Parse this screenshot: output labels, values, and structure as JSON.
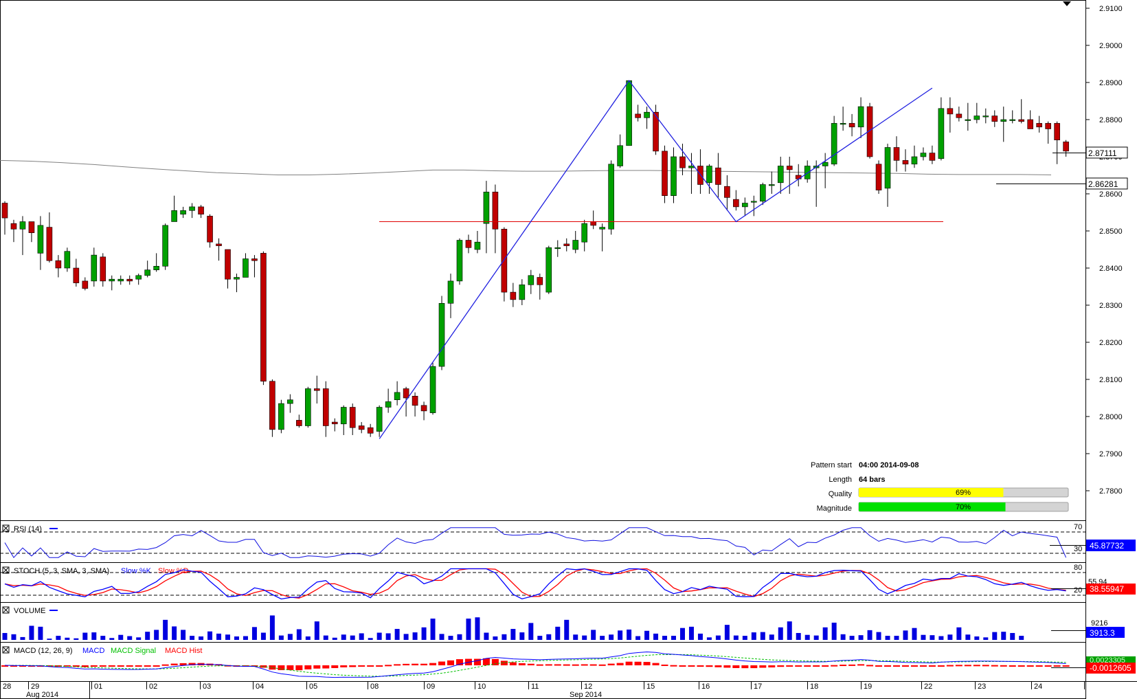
{
  "chart_data": [
    {
      "type": "candlestick",
      "panel": "price",
      "y_ticks": [
        2.91,
        2.9,
        2.89,
        2.88,
        2.87,
        2.86,
        2.85,
        2.84,
        2.83,
        2.82,
        2.81,
        2.8,
        2.79,
        2.78
      ],
      "ylim": [
        2.7715,
        2.912
      ],
      "current_price": "2.87111",
      "ma_value": "2.86281",
      "ma_curve": [
        2.869,
        2.8688,
        2.8684,
        2.8679,
        2.8673,
        2.8667,
        2.8662,
        2.8657,
        2.8654,
        2.8651,
        2.8651,
        2.8653,
        2.8656,
        2.866,
        2.8664,
        2.8664,
        2.8662,
        2.8661,
        2.8661,
        2.8662,
        2.8663,
        2.8663,
        2.8662,
        2.8661,
        2.866,
        2.8659,
        2.8658,
        2.8657,
        2.8656,
        2.8655,
        2.8653,
        2.8652,
        2.8652,
        2.8652,
        2.8651
      ],
      "candles": [
        [
          2.8575,
          2.8535,
          2.858,
          2.849
        ],
        [
          2.852,
          2.8505,
          2.853,
          2.847
        ],
        [
          2.8505,
          2.8525,
          2.854,
          2.8435
        ],
        [
          2.8525,
          2.8495,
          2.852,
          2.847
        ],
        [
          2.844,
          2.8515,
          2.854,
          2.8395
        ],
        [
          2.851,
          2.842,
          2.855,
          2.8415
        ],
        [
          2.842,
          2.84,
          2.8435,
          2.8375
        ],
        [
          2.84,
          2.8445,
          2.8455,
          2.839
        ],
        [
          2.84,
          2.836,
          2.8425,
          2.835
        ],
        [
          2.8365,
          2.8345,
          2.8375,
          2.834
        ],
        [
          2.8365,
          2.8435,
          2.8455,
          2.835
        ],
        [
          2.843,
          2.8365,
          2.844,
          2.835
        ],
        [
          2.8365,
          2.837,
          2.838,
          2.834
        ],
        [
          2.8365,
          2.837,
          2.838,
          2.8355
        ],
        [
          2.837,
          2.8365,
          2.838,
          2.8355
        ],
        [
          2.837,
          2.838,
          2.8385,
          2.8355
        ],
        [
          2.838,
          2.8395,
          2.842,
          2.8375
        ],
        [
          2.8395,
          2.8405,
          2.844,
          2.839
        ],
        [
          2.8405,
          2.8515,
          2.852,
          2.8395
        ],
        [
          2.8525,
          2.8555,
          2.8595,
          2.8525
        ],
        [
          2.8545,
          2.8555,
          2.8565,
          2.8535
        ],
        [
          2.8555,
          2.8565,
          2.8575,
          2.8535
        ],
        [
          2.8565,
          2.8545,
          2.857,
          2.8535
        ],
        [
          2.854,
          2.847,
          2.8545,
          2.8455
        ],
        [
          2.8465,
          2.846,
          2.848,
          2.842
        ],
        [
          2.845,
          2.837,
          2.845,
          2.8345
        ],
        [
          2.837,
          2.8375,
          2.8385,
          2.8335
        ],
        [
          2.8375,
          2.8425,
          2.844,
          2.8375
        ],
        [
          2.8425,
          2.842,
          2.8435,
          2.8375
        ],
        [
          2.844,
          2.8095,
          2.8445,
          2.8085
        ],
        [
          2.8095,
          2.7965,
          2.81,
          2.7945
        ],
        [
          2.7965,
          2.8035,
          2.8045,
          2.7955
        ],
        [
          2.8035,
          2.8045,
          2.806,
          2.801
        ],
        [
          2.799,
          2.7975,
          2.8005,
          2.797
        ],
        [
          2.7975,
          2.8075,
          2.808,
          2.797
        ],
        [
          2.8075,
          2.807,
          2.811,
          2.8035
        ],
        [
          2.8075,
          2.7975,
          2.8095,
          2.7945
        ],
        [
          2.7985,
          2.798,
          2.7995,
          2.796
        ],
        [
          2.798,
          2.8025,
          2.803,
          2.795
        ],
        [
          2.8025,
          2.797,
          2.8035,
          2.795
        ],
        [
          2.7975,
          2.7965,
          2.7985,
          2.7955
        ],
        [
          2.797,
          2.7955,
          2.798,
          2.7945
        ],
        [
          2.796,
          2.8025,
          2.803,
          2.7945
        ],
        [
          2.8025,
          2.804,
          2.8075,
          2.801
        ],
        [
          2.8045,
          2.8065,
          2.8095,
          2.803
        ],
        [
          2.8075,
          2.805,
          2.808,
          2.8
        ],
        [
          2.8055,
          2.803,
          2.8065,
          2.8
        ],
        [
          2.803,
          2.8015,
          2.804,
          2.799
        ],
        [
          2.801,
          2.8135,
          2.8145,
          2.8005
        ],
        [
          2.8135,
          2.8305,
          2.8325,
          2.8125
        ],
        [
          2.8305,
          2.8365,
          2.8385,
          2.8265
        ],
        [
          2.8365,
          2.8475,
          2.848,
          2.8355
        ],
        [
          2.8475,
          2.8455,
          2.849,
          2.844
        ],
        [
          2.845,
          2.847,
          2.85,
          2.844
        ],
        [
          2.852,
          2.8605,
          2.8635,
          2.844
        ],
        [
          2.8605,
          2.8505,
          2.8625,
          2.844
        ],
        [
          2.8505,
          2.8335,
          2.851,
          2.831
        ],
        [
          2.8335,
          2.8315,
          2.836,
          2.8295
        ],
        [
          2.8315,
          2.8355,
          2.837,
          2.83
        ],
        [
          2.8355,
          2.838,
          2.8395,
          2.833
        ],
        [
          2.8375,
          2.8355,
          2.8385,
          2.8315
        ],
        [
          2.8335,
          2.8455,
          2.846,
          2.833
        ],
        [
          2.8455,
          2.8455,
          2.8475,
          2.843
        ],
        [
          2.8465,
          2.846,
          2.848,
          2.8445
        ],
        [
          2.845,
          2.8475,
          2.85,
          2.844
        ],
        [
          2.847,
          2.852,
          2.853,
          2.8445
        ],
        [
          2.8525,
          2.8515,
          2.8555,
          2.8505
        ],
        [
          2.8505,
          2.851,
          2.852,
          2.8445
        ],
        [
          2.8505,
          2.868,
          2.869,
          2.849
        ],
        [
          2.8675,
          2.873,
          2.876,
          2.867
        ],
        [
          2.873,
          2.8905,
          2.8905,
          2.873
        ],
        [
          2.8815,
          2.8805,
          2.884,
          2.8795
        ],
        [
          2.8805,
          2.882,
          2.8835,
          2.8775
        ],
        [
          2.882,
          2.8715,
          2.884,
          2.8705
        ],
        [
          2.8715,
          2.8595,
          2.873,
          2.8575
        ],
        [
          2.8595,
          2.87,
          2.8725,
          2.8575
        ],
        [
          2.87,
          2.867,
          2.8735,
          2.865
        ],
        [
          2.867,
          2.8675,
          2.871,
          2.86
        ],
        [
          2.8675,
          2.8625,
          2.872,
          2.86
        ],
        [
          2.863,
          2.8675,
          2.868,
          2.86
        ],
        [
          2.867,
          2.8625,
          2.871,
          2.859
        ],
        [
          2.862,
          2.859,
          2.865,
          2.8555
        ],
        [
          2.8585,
          2.8565,
          2.861,
          2.8555
        ],
        [
          2.8565,
          2.8575,
          2.859,
          2.854
        ],
        [
          2.858,
          2.858,
          2.8595,
          2.854
        ],
        [
          2.858,
          2.8625,
          2.863,
          2.857
        ],
        [
          2.8625,
          2.8625,
          2.866,
          2.86
        ],
        [
          2.863,
          2.8675,
          2.87,
          2.86
        ],
        [
          2.8675,
          2.8665,
          2.87,
          2.86
        ],
        [
          2.865,
          2.864,
          2.868,
          2.862
        ],
        [
          2.864,
          2.8675,
          2.869,
          2.863
        ],
        [
          2.867,
          2.8675,
          2.869,
          2.8565
        ],
        [
          2.8675,
          2.8685,
          2.871,
          2.8615
        ],
        [
          2.868,
          2.879,
          2.881,
          2.8675
        ],
        [
          2.879,
          2.879,
          2.8835,
          2.877
        ],
        [
          2.879,
          2.878,
          2.8815,
          2.8755
        ],
        [
          2.878,
          2.8835,
          2.886,
          2.875
        ],
        [
          2.8835,
          2.87,
          2.8845,
          2.8695
        ],
        [
          2.868,
          2.861,
          2.869,
          2.86
        ],
        [
          2.8615,
          2.8725,
          2.8735,
          2.8565
        ],
        [
          2.8725,
          2.869,
          2.8755,
          2.866
        ],
        [
          2.869,
          2.868,
          2.872,
          2.866
        ],
        [
          2.868,
          2.87,
          2.873,
          2.867
        ],
        [
          2.87,
          2.871,
          2.8725,
          2.869
        ],
        [
          2.871,
          2.869,
          2.873,
          2.868
        ],
        [
          2.8695,
          2.883,
          2.886,
          2.869
        ],
        [
          2.883,
          2.8815,
          2.886,
          2.8765
        ],
        [
          2.8815,
          2.8805,
          2.8835,
          2.8795
        ],
        [
          2.88,
          2.88,
          2.8845,
          2.877
        ],
        [
          2.88,
          2.881,
          2.8845,
          2.879
        ],
        [
          2.881,
          2.881,
          2.883,
          2.879
        ],
        [
          2.881,
          2.8795,
          2.8825,
          2.878
        ],
        [
          2.8795,
          2.88,
          2.8835,
          2.874
        ],
        [
          2.88,
          2.88,
          2.8825,
          2.879
        ],
        [
          2.88,
          2.8795,
          2.8855,
          2.879
        ],
        [
          2.88,
          2.8775,
          2.8825,
          2.878
        ],
        [
          2.879,
          2.878,
          2.881,
          2.8765
        ],
        [
          2.879,
          2.8775,
          2.8795,
          2.8735
        ],
        [
          2.879,
          2.8745,
          2.8795,
          2.868
        ],
        [
          2.874,
          2.8715,
          2.8745,
          2.87
        ]
      ],
      "pattern_zigzag": [
        [
          2.794,
          42
        ],
        [
          2.8905,
          70
        ],
        [
          2.8525,
          82
        ],
        [
          2.8885,
          104
        ]
      ],
      "support_level": 2.8525,
      "x_labels": [
        "28",
        "29",
        "01",
        "02",
        "03",
        "04",
        "05",
        "08",
        "09",
        "10",
        "11",
        "12",
        "15",
        "16",
        "17",
        "18",
        "19",
        "22",
        "23",
        "24"
      ],
      "month_labels": [
        "Aug 2014",
        "Sep 2014"
      ],
      "info": {
        "pattern_start_label": "Pattern start",
        "pattern_start_value": "04:00 2014-09-08",
        "length_label": "Length",
        "length_value": "64 bars",
        "quality_label": "Quality",
        "quality_value": "69%",
        "quality_fraction": 0.69,
        "magnitude_label": "Magnitude",
        "magnitude_value": "70%",
        "magnitude_fraction": 0.7
      }
    },
    {
      "type": "line",
      "panel": "rsi",
      "title": "RSI (14)",
      "levels": [
        "70",
        "30"
      ],
      "current_value": "45.87732"
    },
    {
      "type": "line",
      "panel": "stoch",
      "title": "STOCH (5, 3, SMA, 3, SMA)",
      "series_names": [
        "Slow %K",
        "Slow %D"
      ],
      "levels": [
        "80",
        "20"
      ],
      "side_value": "55.94",
      "current_value": "38.55947"
    },
    {
      "type": "bar",
      "panel": "volume",
      "title": "VOLUME",
      "max_value": "9216",
      "current_value": "3913.3",
      "values": [
        2200,
        1800,
        900,
        4500,
        4200,
        400,
        1300,
        700,
        500,
        2300,
        2400,
        1300,
        600,
        1600,
        1200,
        800,
        2600,
        3200,
        6400,
        4300,
        3200,
        1300,
        1100,
        2700,
        2000,
        1700,
        1100,
        1200,
        4100,
        2300,
        7800,
        1400,
        1900,
        3400,
        1100,
        5900,
        1400,
        700,
        1700,
        1400,
        2100,
        600,
        2300,
        2100,
        3500,
        1900,
        2400,
        4000,
        6800,
        1900,
        1300,
        1800,
        6800,
        7200,
        2300,
        1100,
        1800,
        3500,
        2400,
        5400,
        1300,
        1800,
        4200,
        6400,
        1700,
        1400,
        3200,
        1300,
        1700,
        3000,
        3300,
        1200,
        2900,
        2000,
        1300,
        1300,
        3800,
        4200,
        2000,
        800,
        1400,
        4800,
        1400,
        1300,
        2400,
        2500,
        1700,
        4000,
        5900,
        2200,
        1600,
        1400,
        4000,
        5500,
        1800,
        1300,
        1500,
        3100,
        2500,
        1300,
        1300,
        3000,
        3800,
        1600,
        1500,
        1200,
        1700,
        4000,
        1700,
        1100,
        800,
        2500,
        2600,
        2200,
        1300
      ]
    },
    {
      "type": "line",
      "panel": "macd",
      "title": "MACD (12, 26, 9)",
      "series_names": [
        "MACD",
        "MACD Signal",
        "MACD Hist"
      ],
      "current_value": "-0.0012605",
      "side_value": "0.0023305"
    }
  ],
  "colors": {
    "bull": "#00a000",
    "bear": "#c00000",
    "zigzag": "#2020e0",
    "support": "#e00000",
    "quality_bar": "#ffff00",
    "magnitude_bar": "#00e000",
    "volume": "#0000e0",
    "macd": "#0000ff",
    "signal": "#00c000",
    "hist": "#ff0000"
  }
}
